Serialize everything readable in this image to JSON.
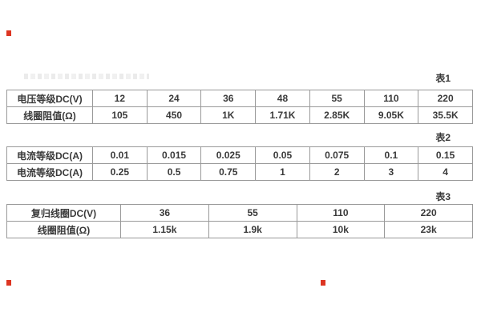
{
  "document": {
    "colors": {
      "background": "#ffffff",
      "text": "#3a3a3a",
      "border": "#999999",
      "marker_red": "#dd3522",
      "faint_text_gray": "#e9e9e9"
    },
    "sections": [
      {
        "label": "表1",
        "rows": [
          [
            "电压等级DC(V)",
            "12",
            "24",
            "36",
            "48",
            "55",
            "110",
            "220"
          ],
          [
            "线圈阻值(Ω)",
            "105",
            "450",
            "1K",
            "1.71K",
            "2.85K",
            "9.05K",
            "35.5K"
          ]
        ]
      },
      {
        "label": "表2",
        "rows": [
          [
            "电流等级DC(A)",
            "0.01",
            "0.015",
            "0.025",
            "0.05",
            "0.075",
            "0.1",
            "0.15"
          ],
          [
            "电流等级DC(A)",
            "0.25",
            "0.5",
            "0.75",
            "1",
            "2",
            "3",
            "4"
          ]
        ]
      },
      {
        "label": "表3",
        "rows": [
          [
            "复归线圈DC(V)",
            "36",
            "55",
            "110",
            "220"
          ],
          [
            "线圈阻值(Ω)",
            "1.15k",
            "1.9k",
            "10k",
            "23k"
          ]
        ]
      }
    ]
  }
}
